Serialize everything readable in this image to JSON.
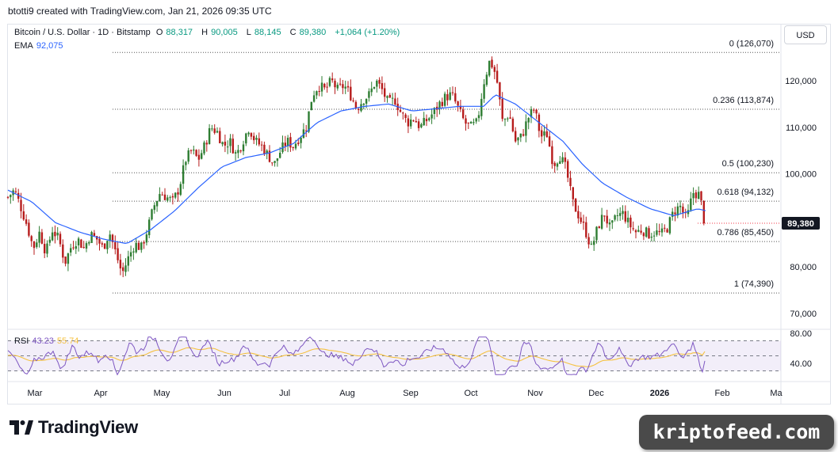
{
  "header": {
    "credit": "btotti9 created with TradingView.com, Jan 21, 2026 09:35 UTC"
  },
  "legend": {
    "symbol": "Bitcoin / U.S. Dollar · 1D · Bitstamp",
    "open_label": "O",
    "open": "88,317",
    "high_label": "H",
    "high": "90,005",
    "low_label": "L",
    "low": "88,145",
    "close_label": "C",
    "close": "89,380",
    "change": "+1,064 (+1.20%)",
    "ema_label": "EMA",
    "ema_value": "92,075"
  },
  "currency_button": "USD",
  "rsi_legend": {
    "label": "RSI",
    "rsi_value": "43.23",
    "ma_value": "55.74"
  },
  "branding": {
    "logo_text": "TradingView",
    "watermark": "kriptofeed.com"
  },
  "colors": {
    "up": "#089981",
    "down": "#f23645",
    "candle_up_body": "#2e7d32",
    "candle_down_body": "#b71c1c",
    "ema": "#2962ff",
    "rsi": "#7e57c2",
    "rsi_ma": "#f5c242",
    "price_label_bg": "#131722"
  },
  "chart_data": {
    "type": "candlestick",
    "price_axis": {
      "min": 70000,
      "max": 126070,
      "ticks": [
        "120,000",
        "110,000",
        "100,000",
        "90,000",
        "80,000",
        "70,000"
      ]
    },
    "current_price": "89,380",
    "x_tick_labels": [
      "Mar",
      "Apr",
      "May",
      "Jun",
      "Jul",
      "Aug",
      "Sep",
      "Oct",
      "Nov",
      "Dec",
      "2026",
      "Feb",
      "Ma"
    ],
    "fib_levels": [
      {
        "ratio": "0",
        "price": 126070,
        "label": "0 (126,070)"
      },
      {
        "ratio": "0.236",
        "price": 113874,
        "label": "0.236 (113,874)"
      },
      {
        "ratio": "0.5",
        "price": 100230,
        "label": "0.5 (100,230)"
      },
      {
        "ratio": "0.618",
        "price": 94132,
        "label": "0.618 (94,132)"
      },
      {
        "ratio": "0.786",
        "price": 85450,
        "label": "0.786 (85,450)"
      },
      {
        "ratio": "1",
        "price": 74390,
        "label": "1 (74,390)"
      }
    ],
    "close_path": [
      [
        0,
        95000
      ],
      [
        8,
        96500
      ],
      [
        16,
        93000
      ],
      [
        24,
        89000
      ],
      [
        32,
        84000
      ],
      [
        40,
        87500
      ],
      [
        48,
        83000
      ],
      [
        56,
        88000
      ],
      [
        64,
        86000
      ],
      [
        72,
        81000
      ],
      [
        80,
        84500
      ],
      [
        88,
        86000
      ],
      [
        96,
        84000
      ],
      [
        104,
        87000
      ],
      [
        112,
        86000
      ],
      [
        120,
        84000
      ],
      [
        128,
        87500
      ],
      [
        136,
        83000
      ],
      [
        144,
        78500
      ],
      [
        152,
        82000
      ],
      [
        160,
        85000
      ],
      [
        168,
        84000
      ],
      [
        176,
        88000
      ],
      [
        184,
        93000
      ],
      [
        192,
        96000
      ],
      [
        200,
        95000
      ],
      [
        208,
        94000
      ],
      [
        216,
        97000
      ],
      [
        224,
        103000
      ],
      [
        232,
        105000
      ],
      [
        240,
        103000
      ],
      [
        248,
        106000
      ],
      [
        256,
        110000
      ],
      [
        264,
        109000
      ],
      [
        272,
        106000
      ],
      [
        280,
        107000
      ],
      [
        288,
        104000
      ],
      [
        296,
        107000
      ],
      [
        304,
        110000
      ],
      [
        312,
        107000
      ],
      [
        320,
        106000
      ],
      [
        328,
        104000
      ],
      [
        336,
        102000
      ],
      [
        344,
        105000
      ],
      [
        352,
        107000
      ],
      [
        360,
        106000
      ],
      [
        368,
        108000
      ],
      [
        376,
        110000
      ],
      [
        384,
        117000
      ],
      [
        392,
        119000
      ],
      [
        400,
        118000
      ],
      [
        408,
        120000
      ],
      [
        416,
        118000
      ],
      [
        424,
        119000
      ],
      [
        432,
        117000
      ],
      [
        440,
        114000
      ],
      [
        448,
        116000
      ],
      [
        456,
        117000
      ],
      [
        464,
        120000
      ],
      [
        472,
        118000
      ],
      [
        480,
        115000
      ],
      [
        488,
        116000
      ],
      [
        496,
        113000
      ],
      [
        504,
        111000
      ],
      [
        512,
        112000
      ],
      [
        520,
        110000
      ],
      [
        528,
        111500
      ],
      [
        536,
        113000
      ],
      [
        544,
        115000
      ],
      [
        552,
        116500
      ],
      [
        560,
        117000
      ],
      [
        568,
        114000
      ],
      [
        576,
        111000
      ],
      [
        584,
        110000
      ],
      [
        592,
        111000
      ],
      [
        600,
        119500
      ],
      [
        608,
        124500
      ],
      [
        616,
        121000
      ],
      [
        624,
        111000
      ],
      [
        632,
        113000
      ],
      [
        640,
        107000
      ],
      [
        648,
        108000
      ],
      [
        656,
        112000
      ],
      [
        664,
        114000
      ],
      [
        672,
        108000
      ],
      [
        680,
        108500
      ],
      [
        688,
        102000
      ],
      [
        696,
        104000
      ],
      [
        704,
        101000
      ],
      [
        712,
        94000
      ],
      [
        720,
        91000
      ],
      [
        728,
        88000
      ],
      [
        736,
        84000
      ],
      [
        744,
        88500
      ],
      [
        752,
        91500
      ],
      [
        760,
        88000
      ],
      [
        768,
        91000
      ],
      [
        776,
        91500
      ],
      [
        784,
        89000
      ],
      [
        792,
        87500
      ],
      [
        800,
        88000
      ],
      [
        808,
        87000
      ],
      [
        816,
        87500
      ],
      [
        824,
        87000
      ],
      [
        832,
        88500
      ],
      [
        840,
        92000
      ],
      [
        848,
        93000
      ],
      [
        856,
        90000
      ],
      [
        864,
        96000
      ],
      [
        872,
        95500
      ],
      [
        880,
        89380
      ]
    ],
    "ema_path": [
      [
        0,
        96500
      ],
      [
        30,
        94000
      ],
      [
        60,
        89500
      ],
      [
        90,
        87500
      ],
      [
        120,
        86000
      ],
      [
        150,
        85000
      ],
      [
        180,
        88000
      ],
      [
        210,
        92000
      ],
      [
        240,
        97000
      ],
      [
        270,
        101500
      ],
      [
        300,
        103500
      ],
      [
        330,
        104500
      ],
      [
        360,
        106500
      ],
      [
        390,
        111000
      ],
      [
        420,
        113500
      ],
      [
        450,
        114500
      ],
      [
        480,
        115000
      ],
      [
        510,
        113500
      ],
      [
        540,
        114000
      ],
      [
        570,
        114500
      ],
      [
        600,
        114500
      ],
      [
        615,
        117000
      ],
      [
        640,
        115000
      ],
      [
        670,
        111000
      ],
      [
        700,
        107000
      ],
      [
        725,
        102000
      ],
      [
        750,
        98000
      ],
      [
        780,
        95000
      ],
      [
        810,
        92500
      ],
      [
        840,
        91000
      ],
      [
        870,
        92500
      ],
      [
        880,
        92075
      ]
    ],
    "rsi": {
      "levels": [
        30,
        50,
        70
      ],
      "axis_ticks": [
        "80.00",
        "40.00"
      ],
      "current": 43.23,
      "ma_current": 55.74
    }
  }
}
